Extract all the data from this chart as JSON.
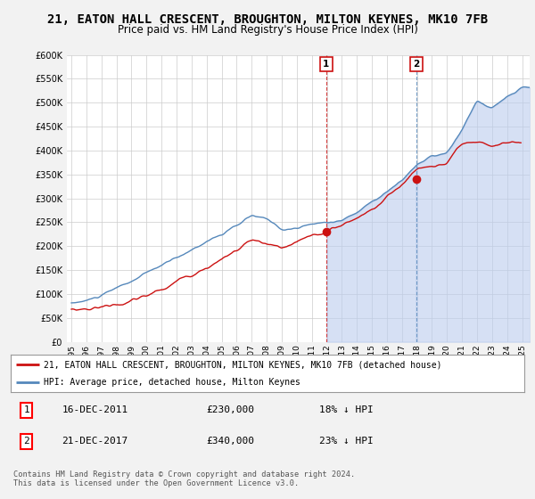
{
  "title": "21, EATON HALL CRESCENT, BROUGHTON, MILTON KEYNES, MK10 7FB",
  "subtitle": "Price paid vs. HM Land Registry's House Price Index (HPI)",
  "title_fontsize": 10,
  "subtitle_fontsize": 8.5,
  "bg_color": "#f2f2f2",
  "plot_bg_color": "#ffffff",
  "grid_color": "#cccccc",
  "ylim": [
    0,
    600000
  ],
  "yticks": [
    0,
    50000,
    100000,
    150000,
    200000,
    250000,
    300000,
    350000,
    400000,
    450000,
    500000,
    550000,
    600000
  ],
  "ytick_labels": [
    "£0",
    "£50K",
    "£100K",
    "£150K",
    "£200K",
    "£250K",
    "£300K",
    "£350K",
    "£400K",
    "£450K",
    "£500K",
    "£550K",
    "£600K"
  ],
  "hpi_color": "#5588bb",
  "hpi_fill_color": "#bbccee",
  "price_color": "#cc1111",
  "legend_label_red": "21, EATON HALL CRESCENT, BROUGHTON, MILTON KEYNES, MK10 7FB (detached house)",
  "legend_label_blue": "HPI: Average price, detached house, Milton Keynes",
  "marker1_x": 2011.96,
  "marker1_y": 230000,
  "marker1_label": "1",
  "marker1_date": "16-DEC-2011",
  "marker1_price": 230000,
  "marker1_hpi_pct": "18%",
  "marker2_x": 2017.96,
  "marker2_y": 340000,
  "marker2_label": "2",
  "marker2_date": "21-DEC-2017",
  "marker2_price": 340000,
  "marker2_hpi_pct": "23%",
  "footer": "Contains HM Land Registry data © Crown copyright and database right 2024.\nThis data is licensed under the Open Government Licence v3.0.",
  "xlim_left": 1994.7,
  "xlim_right": 2025.5
}
